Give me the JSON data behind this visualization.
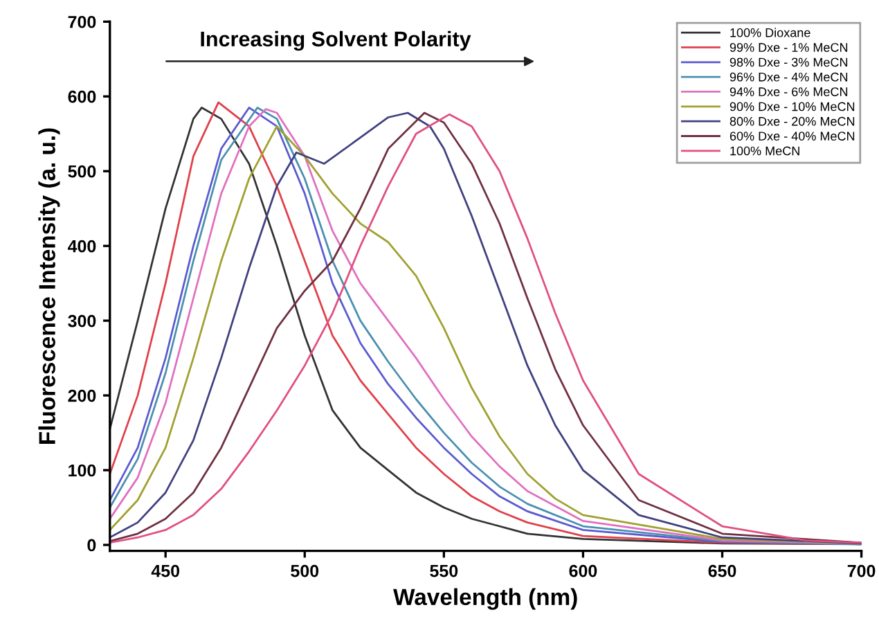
{
  "chart_data": {
    "type": "line",
    "xlabel": "Wavelength (nm)",
    "ylabel": "Fluorescence Intensity (a. u.)",
    "annotations": [
      "Increasing Solvent Polarity"
    ],
    "xlim": [
      430,
      700
    ],
    "xticks": [
      450,
      500,
      550,
      600,
      650,
      700
    ],
    "ylim": [
      -8,
      700
    ],
    "yticks": [
      0,
      100,
      200,
      300,
      400,
      500,
      600,
      700
    ],
    "grid": false,
    "legend": "top right",
    "marker": "none",
    "line_style": "solid",
    "series": [
      {
        "name": "100% Dioxane",
        "color": "#333333",
        "x": [
          430,
          440,
          450,
          460,
          463,
          470,
          480,
          490,
          500,
          510,
          520,
          530,
          540,
          550,
          560,
          570,
          580,
          600,
          650,
          700
        ],
        "values": [
          155,
          300,
          450,
          570,
          585,
          570,
          510,
          400,
          280,
          180,
          130,
          100,
          70,
          50,
          35,
          25,
          15,
          8,
          2,
          1
        ]
      },
      {
        "name": "99% Dxe - 1% MeCN",
        "color": "#e0404a",
        "x": [
          430,
          440,
          450,
          460,
          469,
          480,
          490,
          500,
          510,
          520,
          530,
          540,
          550,
          560,
          570,
          580,
          600,
          650,
          700
        ],
        "values": [
          95,
          200,
          350,
          520,
          592,
          560,
          480,
          380,
          280,
          220,
          175,
          130,
          95,
          65,
          45,
          30,
          12,
          3,
          1
        ]
      },
      {
        "name": "98% Dxe - 3% MeCN",
        "color": "#5a5ad0",
        "x": [
          430,
          440,
          450,
          460,
          470,
          480,
          490,
          500,
          510,
          520,
          530,
          540,
          550,
          560,
          570,
          580,
          600,
          650,
          700
        ],
        "values": [
          60,
          130,
          250,
          400,
          530,
          585,
          560,
          470,
          350,
          270,
          215,
          170,
          130,
          95,
          65,
          45,
          20,
          4,
          1
        ]
      },
      {
        "name": "96% Dxe - 4% MeCN",
        "color": "#4a90b0",
        "x": [
          430,
          440,
          450,
          460,
          470,
          483,
          490,
          500,
          510,
          520,
          530,
          540,
          550,
          560,
          570,
          580,
          600,
          650,
          700
        ],
        "values": [
          50,
          115,
          230,
          380,
          515,
          585,
          570,
          490,
          380,
          300,
          245,
          195,
          150,
          110,
          78,
          55,
          25,
          5,
          1
        ]
      },
      {
        "name": "94% Dxe - 6% MeCN",
        "color": "#e070c0",
        "x": [
          430,
          440,
          450,
          460,
          470,
          480,
          486,
          490,
          500,
          510,
          520,
          530,
          540,
          550,
          560,
          570,
          580,
          600,
          650,
          700
        ],
        "values": [
          35,
          90,
          190,
          330,
          470,
          560,
          583,
          578,
          520,
          420,
          350,
          300,
          250,
          195,
          145,
          105,
          72,
          32,
          6,
          2
        ]
      },
      {
        "name": "90% Dxe - 10% MeCN",
        "color": "#a0a030",
        "x": [
          430,
          440,
          450,
          460,
          470,
          480,
          490,
          500,
          510,
          520,
          530,
          540,
          550,
          560,
          570,
          580,
          590,
          600,
          650,
          700
        ],
        "values": [
          20,
          60,
          130,
          250,
          380,
          490,
          560,
          520,
          470,
          430,
          405,
          360,
          290,
          210,
          145,
          95,
          62,
          40,
          8,
          2
        ]
      },
      {
        "name": "80% Dxe - 20% MeCN",
        "color": "#404080",
        "x": [
          430,
          440,
          450,
          460,
          470,
          480,
          490,
          497,
          507,
          520,
          530,
          537,
          545,
          550,
          560,
          570,
          580,
          590,
          600,
          620,
          650,
          700
        ],
        "values": [
          10,
          30,
          70,
          140,
          250,
          370,
          480,
          525,
          510,
          545,
          572,
          578,
          560,
          530,
          440,
          340,
          240,
          160,
          100,
          40,
          10,
          2
        ]
      },
      {
        "name": "60% Dxe - 40% MeCN",
        "color": "#703040",
        "x": [
          430,
          440,
          450,
          460,
          470,
          480,
          490,
          500,
          510,
          520,
          530,
          543,
          550,
          560,
          570,
          580,
          590,
          600,
          620,
          650,
          700
        ],
        "values": [
          5,
          15,
          35,
          70,
          130,
          210,
          290,
          340,
          380,
          450,
          530,
          578,
          565,
          510,
          430,
          330,
          235,
          160,
          60,
          15,
          3
        ]
      },
      {
        "name": "100% MeCN",
        "color": "#e05080",
        "x": [
          430,
          440,
          450,
          460,
          470,
          480,
          490,
          500,
          510,
          520,
          530,
          540,
          552,
          560,
          570,
          580,
          590,
          600,
          620,
          650,
          680,
          700
        ],
        "values": [
          3,
          10,
          20,
          40,
          75,
          125,
          180,
          240,
          310,
          400,
          480,
          550,
          576,
          560,
          500,
          410,
          310,
          220,
          95,
          25,
          6,
          3
        ]
      }
    ]
  }
}
